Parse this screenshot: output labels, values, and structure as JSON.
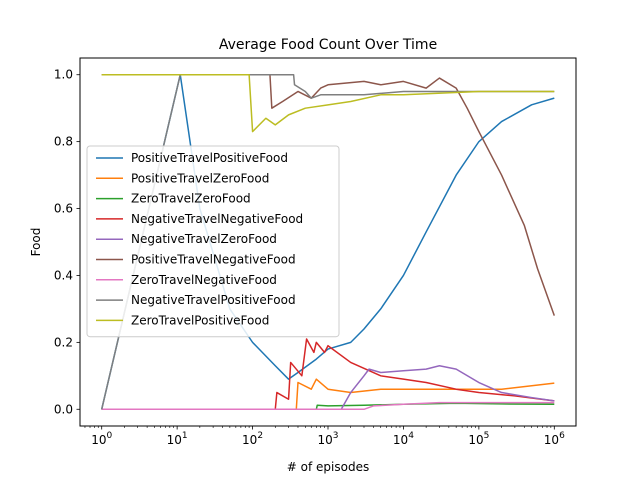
{
  "chart_data": {
    "type": "line",
    "title": "Average Food Count Over Time",
    "xlabel": "# of episodes",
    "ylabel": "Food",
    "xscale": "log",
    "xlim": [
      1,
      1000000
    ],
    "ylim": [
      -0.05,
      1.05
    ],
    "legend_position": "center-left",
    "grid": false,
    "x_ticks": [
      {
        "value": 1,
        "base": "10",
        "exp": "0"
      },
      {
        "value": 10,
        "base": "10",
        "exp": "1"
      },
      {
        "value": 100,
        "base": "10",
        "exp": "2"
      },
      {
        "value": 1000,
        "base": "10",
        "exp": "3"
      },
      {
        "value": 10000,
        "base": "10",
        "exp": "4"
      },
      {
        "value": 100000,
        "base": "10",
        "exp": "5"
      },
      {
        "value": 1000000,
        "base": "10",
        "exp": "6"
      }
    ],
    "y_ticks": [
      {
        "value": 0.0,
        "label": "0.0"
      },
      {
        "value": 0.2,
        "label": "0.2"
      },
      {
        "value": 0.4,
        "label": "0.4"
      },
      {
        "value": 0.6,
        "label": "0.6"
      },
      {
        "value": 0.8,
        "label": "0.8"
      },
      {
        "value": 1.0,
        "label": "1.0"
      }
    ],
    "series": [
      {
        "name": "PositiveTravelPositiveFood",
        "color": "#1f77b4",
        "points": [
          [
            1,
            0
          ],
          [
            11,
            1.0
          ],
          [
            20,
            0.6
          ],
          [
            50,
            0.3
          ],
          [
            100,
            0.2
          ],
          [
            200,
            0.13
          ],
          [
            300,
            0.09
          ],
          [
            400,
            0.11
          ],
          [
            700,
            0.15
          ],
          [
            1000,
            0.18
          ],
          [
            2000,
            0.2
          ],
          [
            3000,
            0.24
          ],
          [
            5000,
            0.3
          ],
          [
            10000,
            0.4
          ],
          [
            20000,
            0.53
          ],
          [
            50000,
            0.7
          ],
          [
            100000,
            0.8
          ],
          [
            200000,
            0.86
          ],
          [
            500000,
            0.91
          ],
          [
            1000000,
            0.93
          ]
        ]
      },
      {
        "name": "PositiveTravelZeroFood",
        "color": "#ff7f0e",
        "points": [
          [
            1,
            0
          ],
          [
            380,
            0
          ],
          [
            400,
            0.08
          ],
          [
            600,
            0.06
          ],
          [
            700,
            0.09
          ],
          [
            1000,
            0.06
          ],
          [
            2000,
            0.05
          ],
          [
            5000,
            0.06
          ],
          [
            10000,
            0.06
          ],
          [
            50000,
            0.06
          ],
          [
            200000,
            0.06
          ],
          [
            1000000,
            0.078
          ]
        ]
      },
      {
        "name": "ZeroTravelZeroFood",
        "color": "#2ca02c",
        "points": [
          [
            1,
            0
          ],
          [
            700,
            0
          ],
          [
            720,
            0.012
          ],
          [
            1000,
            0.01
          ],
          [
            3000,
            0.012
          ],
          [
            10000,
            0.015
          ],
          [
            50000,
            0.018
          ],
          [
            200000,
            0.016
          ],
          [
            1000000,
            0.015
          ]
        ]
      },
      {
        "name": "NegativeTravelNegativeFood",
        "color": "#d62728",
        "points": [
          [
            1,
            0
          ],
          [
            200,
            0
          ],
          [
            210,
            0.05
          ],
          [
            300,
            0.03
          ],
          [
            320,
            0.14
          ],
          [
            450,
            0.1
          ],
          [
            520,
            0.21
          ],
          [
            650,
            0.17
          ],
          [
            700,
            0.2
          ],
          [
            900,
            0.17
          ],
          [
            1000,
            0.19
          ],
          [
            2000,
            0.14
          ],
          [
            5000,
            0.1
          ],
          [
            10000,
            0.09
          ],
          [
            20000,
            0.08
          ],
          [
            50000,
            0.06
          ],
          [
            100000,
            0.05
          ],
          [
            300000,
            0.04
          ],
          [
            1000000,
            0.025
          ]
        ]
      },
      {
        "name": "NegativeTravelZeroFood",
        "color": "#9467bd",
        "points": [
          [
            1,
            0
          ],
          [
            1500,
            0
          ],
          [
            2000,
            0.05
          ],
          [
            3000,
            0.1
          ],
          [
            3500,
            0.12
          ],
          [
            5000,
            0.11
          ],
          [
            10000,
            0.115
          ],
          [
            20000,
            0.12
          ],
          [
            30000,
            0.13
          ],
          [
            50000,
            0.12
          ],
          [
            100000,
            0.08
          ],
          [
            200000,
            0.05
          ],
          [
            500000,
            0.035
          ],
          [
            1000000,
            0.025
          ]
        ]
      },
      {
        "name": "PositiveTravelNegativeFood",
        "color": "#8c564b",
        "points": [
          [
            1,
            1.0
          ],
          [
            170,
            1.0
          ],
          [
            180,
            0.9
          ],
          [
            250,
            0.92
          ],
          [
            400,
            0.95
          ],
          [
            600,
            0.93
          ],
          [
            800,
            0.96
          ],
          [
            1000,
            0.97
          ],
          [
            3000,
            0.98
          ],
          [
            5000,
            0.97
          ],
          [
            10000,
            0.98
          ],
          [
            20000,
            0.96
          ],
          [
            30000,
            0.99
          ],
          [
            50000,
            0.96
          ],
          [
            70000,
            0.9
          ],
          [
            100000,
            0.83
          ],
          [
            200000,
            0.7
          ],
          [
            400000,
            0.55
          ],
          [
            600000,
            0.42
          ],
          [
            1000000,
            0.28
          ]
        ]
      },
      {
        "name": "ZeroTravelNegativeFood",
        "color": "#e377c2",
        "points": [
          [
            1,
            0
          ],
          [
            3000,
            0
          ],
          [
            4000,
            0.01
          ],
          [
            10000,
            0.015
          ],
          [
            30000,
            0.02
          ],
          [
            100000,
            0.02
          ],
          [
            1000000,
            0.02
          ]
        ]
      },
      {
        "name": "NegativeTravelPositiveFood",
        "color": "#7f7f7f",
        "points": [
          [
            1,
            0
          ],
          [
            11,
            1.0
          ],
          [
            350,
            1.0
          ],
          [
            360,
            0.97
          ],
          [
            500,
            0.95
          ],
          [
            600,
            0.93
          ],
          [
            800,
            0.94
          ],
          [
            1000,
            0.94
          ],
          [
            3000,
            0.94
          ],
          [
            10000,
            0.95
          ],
          [
            100000,
            0.95
          ],
          [
            1000000,
            0.95
          ]
        ]
      },
      {
        "name": "ZeroTravelPositiveFood",
        "color": "#bcbd22",
        "points": [
          [
            1,
            1.0
          ],
          [
            90,
            1.0
          ],
          [
            100,
            0.83
          ],
          [
            150,
            0.87
          ],
          [
            200,
            0.85
          ],
          [
            300,
            0.88
          ],
          [
            500,
            0.9
          ],
          [
            1000,
            0.91
          ],
          [
            2000,
            0.92
          ],
          [
            5000,
            0.94
          ],
          [
            10000,
            0.94
          ],
          [
            100000,
            0.95
          ],
          [
            1000000,
            0.95
          ]
        ]
      }
    ]
  }
}
